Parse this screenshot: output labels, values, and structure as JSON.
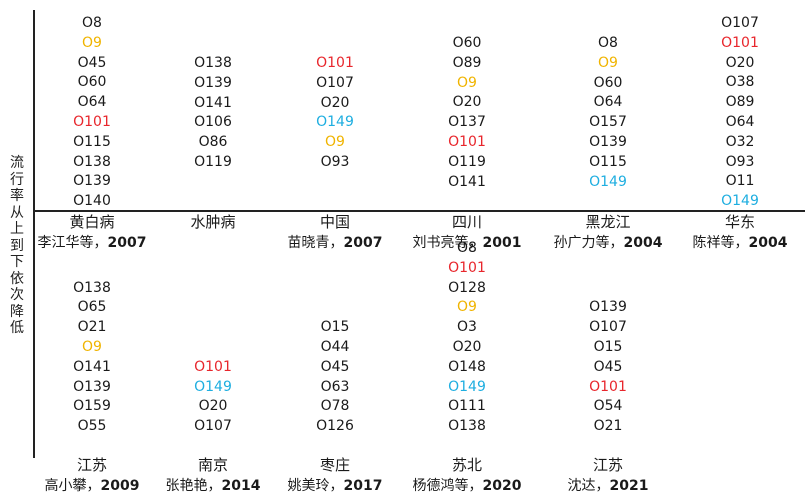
{
  "y_axis_label": "流行率从上到下依次降低",
  "colors": {
    "default": "#1a1a1a",
    "O101": "#e8262c",
    "O9": "#f0b400",
    "O149": "#1eaee0"
  },
  "top_row": [
    {
      "region": "黄白病",
      "authors": "李江华等，",
      "year": "2007",
      "serotypes": [
        "O8",
        "O9",
        "O45",
        "O60",
        "O64",
        "O101",
        "O115",
        "O138",
        "O139",
        "O140"
      ]
    },
    {
      "region": "水肿病",
      "authors": "",
      "year": "",
      "serotypes": [
        "O138",
        "O139",
        "O141",
        "O106",
        "O86",
        "O119"
      ]
    },
    {
      "region": "中国",
      "authors": "苗晓青，",
      "year": "2007",
      "serotypes": [
        "O101",
        "O107",
        "O20",
        "O149",
        "O9",
        "O93"
      ]
    },
    {
      "region": "四川",
      "authors": "刘书亮等，",
      "year": "2001",
      "serotypes": [
        "O60",
        "O89",
        "O9",
        "O20",
        "O137",
        "O101",
        "O119",
        "O141"
      ]
    },
    {
      "region": "黑龙江",
      "authors": "孙广力等，",
      "year": "2004",
      "serotypes": [
        "O8",
        "O9",
        "O60",
        "O64",
        "O157",
        "O139",
        "O115",
        "O149"
      ]
    },
    {
      "region": "华东",
      "authors": "陈祥等，",
      "year": "2004",
      "serotypes": [
        "O107",
        "O101",
        "O20",
        "O38",
        "O89",
        "O64",
        "O32",
        "O93",
        "O11",
        "O149"
      ]
    }
  ],
  "bottom_row": [
    {
      "region": "江苏",
      "authors": "高小攀，",
      "year": "2009",
      "serotypes": [
        "O138",
        "O65",
        "O21",
        "O9",
        "O141",
        "O139",
        "O159",
        "O55"
      ]
    },
    {
      "region": "南京",
      "authors": "张艳艳，",
      "year": "2014",
      "serotypes": [
        "O101",
        "O149",
        "O20",
        "O107"
      ]
    },
    {
      "region": "枣庄",
      "authors": "姚美玲，",
      "year": "2017",
      "serotypes": [
        "O15",
        "O44",
        "O45",
        "O63",
        "O78",
        "O126"
      ]
    },
    {
      "region": "苏北",
      "authors": "杨德鸿等，",
      "year": "2020",
      "serotypes": [
        "O8",
        "O101",
        "O128",
        "O9",
        "O3",
        "O20",
        "O148",
        "O149",
        "O111",
        "O138"
      ]
    },
    {
      "region": "江苏",
      "authors": "沈达，",
      "year": "2021",
      "serotypes": [
        "O139",
        "O107",
        "O15",
        "O45",
        "O101",
        "O54",
        "O21"
      ]
    }
  ]
}
